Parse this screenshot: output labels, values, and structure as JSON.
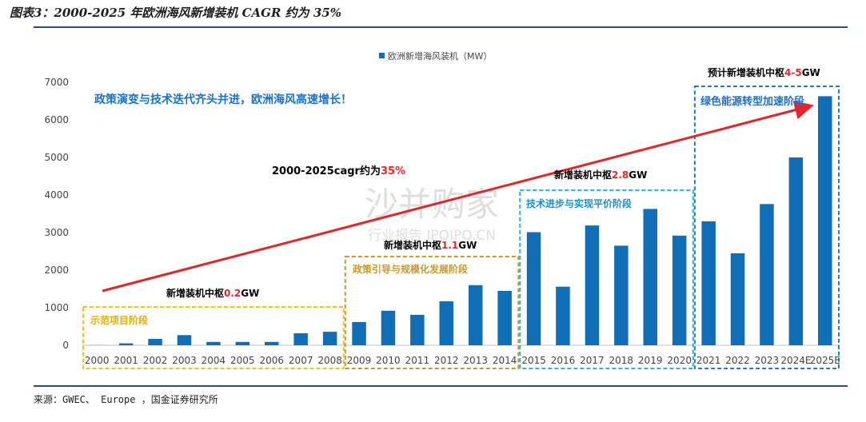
{
  "title": "图表3：2000-2025 年欧洲海风新增装机 CAGR 约为 35%",
  "source": "来源：GWEC、 Europe    ，国金证券研究所",
  "watermark": {
    "main": "沙并购家",
    "sub": "行业报告 IPOIPO.CN"
  },
  "colors": {
    "bar": "#0f6eb6",
    "arrow": "#e3262a",
    "yellow": "#f2c21b",
    "gold": "#c89a2b",
    "lightblue": "#33aee0",
    "blue_box": "#1f7fc5"
  },
  "chart_data": {
    "type": "bar",
    "categories": [
      "2000",
      "2001",
      "2002",
      "2003",
      "2004",
      "2005",
      "2006",
      "2007",
      "2008",
      "2009",
      "2010",
      "2011",
      "2012",
      "2013",
      "2014",
      "2015",
      "2016",
      "2017",
      "2018",
      "2019",
      "2020",
      "2021",
      "2022",
      "2023",
      "2024E",
      "2025E"
    ],
    "series": [
      {
        "name": "欧洲新增海风装机（MW）",
        "values": [
          4,
          50,
          170,
          270,
          90,
          90,
          90,
          320,
          360,
          620,
          920,
          810,
          1170,
          1600,
          1450,
          3010,
          1560,
          3190,
          2650,
          3630,
          2920,
          3300,
          2450,
          3760,
          5000,
          6630
        ]
      }
    ],
    "ylim": [
      0,
      7000
    ],
    "yticks": [
      "0",
      "1000",
      "2000",
      "3000",
      "4000",
      "5000",
      "6000",
      "7000"
    ],
    "legend": "top-center",
    "grid": false,
    "annotations": {
      "headline": "政策演变与技术迭代齐头并进，欧洲海风高速增长！",
      "cagr_prefix": "2000-2025cagr约为",
      "cagr_value": "35%",
      "stages": [
        {
          "name": "示范项目阶段",
          "center_prefix": "新增装机中枢",
          "center_value": "0.2",
          "unit": "GW"
        },
        {
          "name": "政策引导与规模化发展阶段",
          "center_prefix": "新增装机中枢",
          "center_value": "1.1",
          "unit": "GW"
        },
        {
          "name": "技术进步与实现平价阶段",
          "center_prefix": "新增装机中枢",
          "center_value": "2.8",
          "unit": "GW"
        },
        {
          "name": "绿色能源转型加速阶段",
          "center_prefix": "预计新增装机中枢",
          "center_value": "4-5",
          "unit": "GW"
        }
      ]
    }
  }
}
